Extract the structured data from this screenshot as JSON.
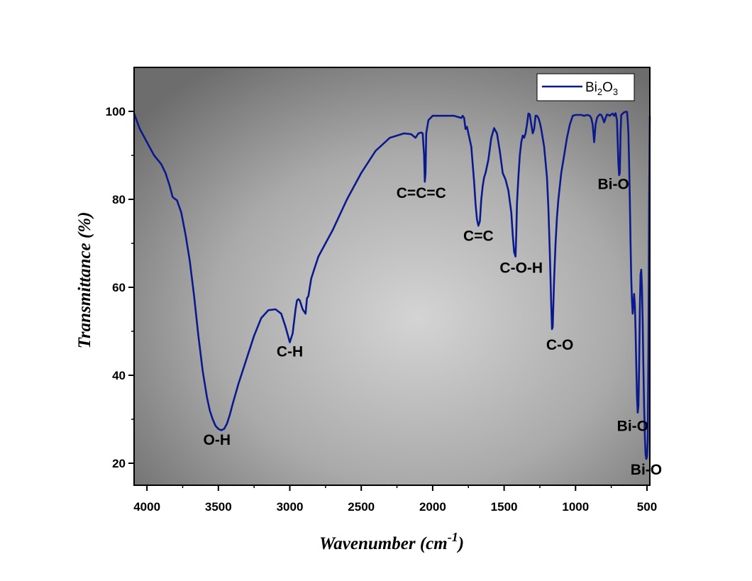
{
  "chart_data": {
    "type": "line",
    "title": "",
    "xlabel": "Wavenumber",
    "xlabel_unit_base": "cm",
    "xlabel_unit_exp": "-1",
    "ylabel": "Transmittance (%)",
    "xlim": [
      4090,
      480
    ],
    "ylim": [
      15,
      110
    ],
    "x_reversed": true,
    "grid": false,
    "legend_position": "top-right",
    "x_ticks": [
      4000,
      3500,
      3000,
      2500,
      2000,
      1500,
      1000,
      500
    ],
    "y_ticks": [
      20,
      40,
      60,
      80,
      100
    ],
    "legend": {
      "base": "Bi",
      "sub1": "2",
      "mid": "O",
      "sub2": "3"
    },
    "colors": {
      "line": "#0a1a8c",
      "panel_edge": "#6d6d6d",
      "panel_center": "#d4d4d4"
    },
    "series": [
      {
        "name": "Bi2O3",
        "x": [
          4090,
          4050,
          4000,
          3950,
          3900,
          3870,
          3840,
          3820,
          3800,
          3790,
          3760,
          3730,
          3700,
          3670,
          3640,
          3610,
          3580,
          3560,
          3540,
          3520,
          3500,
          3480,
          3460,
          3440,
          3420,
          3400,
          3360,
          3300,
          3250,
          3200,
          3150,
          3100,
          3060,
          3030,
          3000,
          2980,
          2960,
          2950,
          2940,
          2930,
          2910,
          2890,
          2880,
          2870,
          2860,
          2850,
          2830,
          2800,
          2700,
          2600,
          2500,
          2400,
          2300,
          2200,
          2150,
          2120,
          2100,
          2080,
          2070,
          2060,
          2055,
          2050,
          2045,
          2030,
          2000,
          1950,
          1900,
          1850,
          1800,
          1790,
          1780,
          1770,
          1760,
          1750,
          1730,
          1720,
          1710,
          1700,
          1690,
          1680,
          1670,
          1660,
          1650,
          1640,
          1630,
          1610,
          1590,
          1570,
          1550,
          1530,
          1510,
          1490,
          1470,
          1450,
          1440,
          1430,
          1420,
          1415,
          1410,
          1400,
          1390,
          1380,
          1370,
          1360,
          1350,
          1340,
          1330,
          1320,
          1310,
          1300,
          1290,
          1280,
          1270,
          1260,
          1250,
          1240,
          1220,
          1200,
          1190,
          1180,
          1170,
          1165,
          1160,
          1150,
          1140,
          1130,
          1120,
          1110,
          1100,
          1080,
          1060,
          1040,
          1020,
          1000,
          980,
          960,
          940,
          920,
          900,
          890,
          880,
          875,
          870,
          865,
          860,
          850,
          840,
          830,
          820,
          810,
          800,
          790,
          780,
          770,
          760,
          750,
          740,
          730,
          720,
          710,
          705,
          700,
          695,
          690,
          685,
          680,
          670,
          660,
          650,
          640,
          635,
          630,
          625,
          620,
          615,
          610,
          605,
          600,
          595,
          590,
          585,
          580,
          575,
          570,
          565,
          560,
          555,
          550,
          545,
          540,
          535,
          530,
          525,
          520,
          515,
          510,
          505,
          500,
          495,
          490,
          485,
          480
        ],
        "y": [
          99.5,
          96,
          93,
          90,
          88,
          86,
          83,
          80.5,
          80,
          79.8,
          77,
          72,
          66,
          58,
          49,
          41,
          35,
          32,
          30,
          28.5,
          27.8,
          27.5,
          27.8,
          29,
          31,
          33.5,
          38,
          44,
          49,
          53,
          54.8,
          55,
          54,
          51,
          47.5,
          49.5,
          55,
          57,
          57.3,
          57,
          55,
          54,
          57.5,
          58,
          60,
          62,
          64,
          67,
          73,
          80,
          86,
          91,
          94,
          95,
          94.8,
          94,
          95,
          95.2,
          95,
          90,
          84,
          86,
          95,
          98,
          99,
          99,
          99,
          99,
          98.5,
          99,
          98.5,
          96,
          96.5,
          95,
          92,
          88,
          84,
          79,
          75.5,
          74,
          75,
          80,
          83,
          85,
          86,
          89,
          94,
          96.2,
          95,
          91,
          86,
          84.5,
          82,
          77,
          72,
          68,
          67,
          72,
          79,
          85,
          90,
          93,
          94.5,
          94,
          95,
          97,
          99.5,
          99.3,
          97,
          95,
          96,
          99,
          99,
          98.5,
          97.5,
          96,
          92,
          85,
          78,
          68,
          56,
          50.5,
          51,
          62,
          70,
          76,
          80,
          83,
          86,
          90,
          94,
          97,
          99,
          99.2,
          99.2,
          99.2,
          99,
          99.2,
          99,
          98.5,
          97,
          95,
          93,
          95,
          97,
          98.5,
          99,
          99.3,
          99.2,
          98.5,
          97.5,
          98.5,
          99.3,
          99.2,
          99,
          99.3,
          99.5,
          99,
          99.6,
          98,
          93,
          88,
          85.5,
          86,
          95,
          99.2,
          99.5,
          99.8,
          99.9,
          99.9,
          98,
          95,
          88,
          80,
          70,
          62,
          57,
          54,
          56,
          58.5,
          56,
          50,
          42,
          35,
          31.5,
          33,
          42,
          55,
          63,
          64,
          60,
          52,
          42,
          33,
          26,
          22,
          21,
          21.5,
          25,
          45,
          80,
          99
        ]
      }
    ],
    "annotations": [
      {
        "label": "O-H",
        "x": 3510,
        "y": 24.2
      },
      {
        "label": "C-H",
        "x": 3000,
        "y": 44.3
      },
      {
        "label": "C=C=C",
        "x": 2080,
        "y": 80.3
      },
      {
        "label": "C=C",
        "x": 1680,
        "y": 70.6
      },
      {
        "label": "C-O-H",
        "x": 1380,
        "y": 63.3
      },
      {
        "label": "C-O",
        "x": 1110,
        "y": 45.8
      },
      {
        "label": "Bi-O",
        "x": 735,
        "y": 82.3
      },
      {
        "label": "Bi-O",
        "x": 600,
        "y": 27.3
      },
      {
        "label": "Bi-O",
        "x": 505,
        "y": 17.4
      }
    ]
  }
}
